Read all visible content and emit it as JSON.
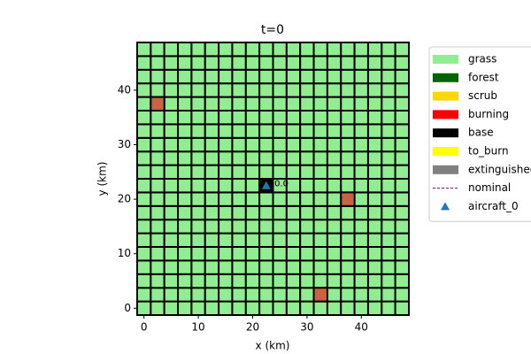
{
  "chart_data": {
    "type": "grid_map",
    "title": "t=0",
    "x_label": "x (km)",
    "y_label": "y (km)",
    "xlim": [
      -1.25,
      48.75
    ],
    "ylim": [
      -1.25,
      48.75
    ],
    "xticks": [
      0,
      10,
      20,
      30,
      40
    ],
    "yticks": [
      0,
      10,
      20,
      30,
      40
    ],
    "cell_size": 2.5,
    "cell_color": "#90ee90",
    "cells": [
      {
        "x": 2.5,
        "y": 37.5,
        "color": "#c8643f"
      },
      {
        "x": 37.5,
        "y": 20,
        "color": "#c8643f"
      },
      {
        "x": 32.5,
        "y": 2.5,
        "color": "#c8643f"
      },
      {
        "x": 22.5,
        "y": 22.5,
        "color": "#000000"
      }
    ],
    "aircraft": [
      {
        "x": 22.5,
        "y": 22.5,
        "label": "t=0.0",
        "color": "#1f77b4"
      }
    ],
    "legend": [
      {
        "name": "grass",
        "kind": "patch",
        "color": "#90ee90"
      },
      {
        "name": "forest",
        "kind": "patch",
        "color": "#006400"
      },
      {
        "name": "scrub",
        "kind": "patch",
        "color": "#ffd700"
      },
      {
        "name": "burning",
        "kind": "patch",
        "color": "#ff0000"
      },
      {
        "name": "base",
        "kind": "patch",
        "color": "#000000"
      },
      {
        "name": "to_burn",
        "kind": "patch",
        "color": "#ffff00"
      },
      {
        "name": "extinguished",
        "kind": "patch",
        "color": "#808080"
      },
      {
        "name": "nominal",
        "kind": "dashed",
        "color": "#800080"
      },
      {
        "name": "aircraft_0",
        "kind": "triangle",
        "color": "#1f77b4"
      }
    ]
  }
}
